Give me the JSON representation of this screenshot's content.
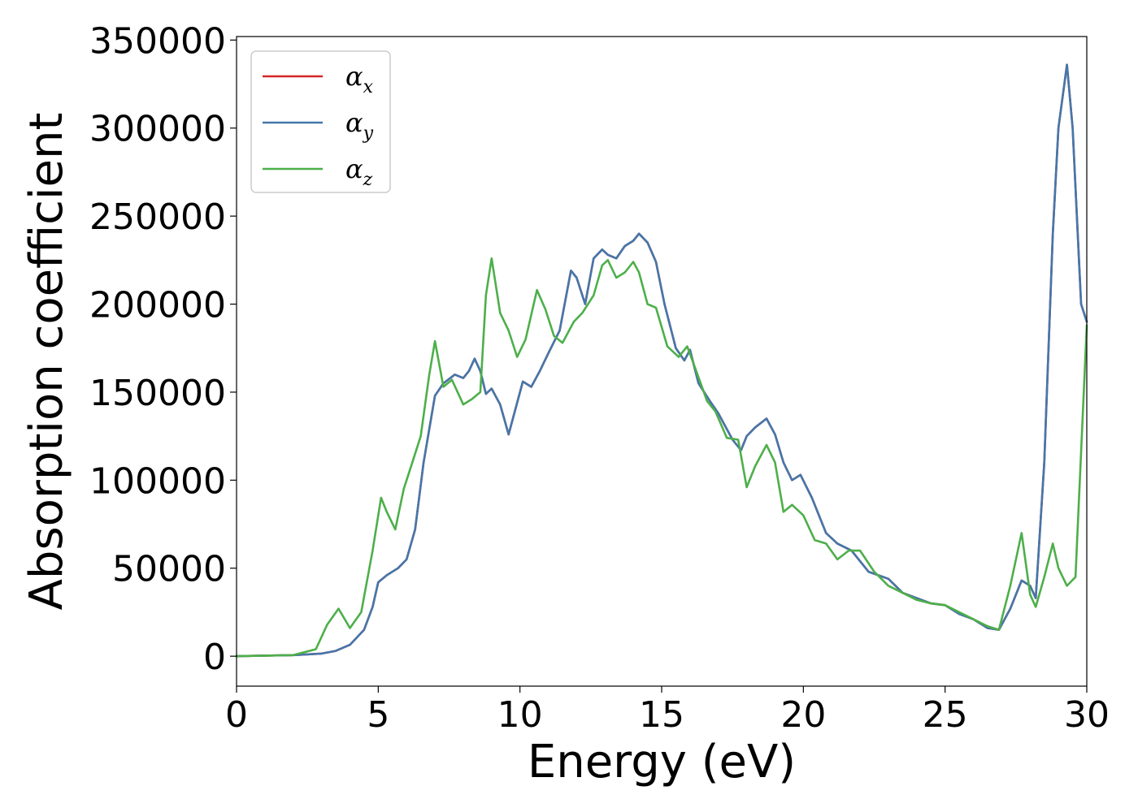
{
  "chart_data": {
    "type": "line",
    "title": "",
    "xlabel": "Energy (eV)",
    "ylabel": "Absorption coefficient",
    "xlim": [
      0,
      30
    ],
    "ylim": [
      -17000,
      352000
    ],
    "xticks": [
      0,
      5,
      10,
      15,
      20,
      25,
      30
    ],
    "xtick_labels": [
      "0",
      "5",
      "10",
      "15",
      "20",
      "25",
      "30"
    ],
    "yticks": [
      0,
      50000,
      100000,
      150000,
      200000,
      250000,
      300000,
      350000
    ],
    "ytick_labels": [
      "0",
      "50000",
      "100000",
      "150000",
      "200000",
      "250000",
      "300000",
      "350000"
    ],
    "grid": false,
    "legend_position": "upper-left",
    "series": [
      {
        "name": "αx",
        "symbol": "α",
        "subscript": "x",
        "color": "#d62728",
        "x": [
          0,
          2,
          3,
          3.5,
          4,
          4.5,
          4.8,
          5,
          5.3,
          5.7,
          6,
          6.3,
          6.6,
          7,
          7.3,
          7.7,
          8,
          8.2,
          8.4,
          8.6,
          8.8,
          9,
          9.3,
          9.6,
          9.8,
          10.1,
          10.4,
          10.7,
          11,
          11.4,
          11.8,
          12,
          12.3,
          12.6,
          12.9,
          13.1,
          13.4,
          13.7,
          14,
          14.2,
          14.5,
          14.8,
          15.1,
          15.5,
          15.8,
          16,
          16.3,
          16.7,
          17,
          17.5,
          17.8,
          18,
          18.3,
          18.7,
          19,
          19.3,
          19.6,
          19.9,
          20.3,
          20.8,
          21.2,
          21.7,
          22.3,
          23,
          23.5,
          24,
          24.5,
          25,
          25.5,
          26,
          26.5,
          26.9,
          27.3,
          27.7,
          28,
          28.2,
          28.5,
          28.8,
          29,
          29.3,
          29.5,
          29.8,
          30
        ],
        "values": [
          0,
          600,
          1500,
          3000,
          6500,
          15000,
          28000,
          42000,
          46000,
          50000,
          55000,
          72000,
          110000,
          148000,
          155000,
          160000,
          158000,
          162000,
          169000,
          162000,
          149000,
          152000,
          143000,
          126000,
          138000,
          156000,
          153000,
          162000,
          172000,
          185000,
          219000,
          215000,
          200000,
          226000,
          231000,
          228000,
          226000,
          233000,
          236000,
          240000,
          235000,
          224000,
          200000,
          175000,
          168000,
          174000,
          155000,
          145000,
          138000,
          123000,
          117000,
          125000,
          130000,
          135000,
          126000,
          110000,
          100000,
          103000,
          90000,
          70000,
          64000,
          60000,
          48000,
          44000,
          36000,
          33000,
          30000,
          29000,
          24000,
          21000,
          16000,
          15000,
          27000,
          43000,
          40000,
          33000,
          110000,
          240000,
          300000,
          336000,
          300000,
          200000,
          190000
        ],
        "dash": false
      },
      {
        "name": "αy",
        "symbol": "α",
        "subscript": "y",
        "color": "#4477aa",
        "x": [
          0,
          2,
          3,
          3.5,
          4,
          4.5,
          4.8,
          5,
          5.3,
          5.7,
          6,
          6.3,
          6.6,
          7,
          7.3,
          7.7,
          8,
          8.2,
          8.4,
          8.6,
          8.8,
          9,
          9.3,
          9.6,
          9.8,
          10.1,
          10.4,
          10.7,
          11,
          11.4,
          11.8,
          12,
          12.3,
          12.6,
          12.9,
          13.1,
          13.4,
          13.7,
          14,
          14.2,
          14.5,
          14.8,
          15.1,
          15.5,
          15.8,
          16,
          16.3,
          16.7,
          17,
          17.5,
          17.8,
          18,
          18.3,
          18.7,
          19,
          19.3,
          19.6,
          19.9,
          20.3,
          20.8,
          21.2,
          21.7,
          22.3,
          23,
          23.5,
          24,
          24.5,
          25,
          25.5,
          26,
          26.5,
          26.9,
          27.3,
          27.7,
          28,
          28.2,
          28.5,
          28.8,
          29,
          29.3,
          29.5,
          29.8,
          30
        ],
        "values": [
          0,
          600,
          1500,
          3000,
          6500,
          15000,
          28000,
          42000,
          46000,
          50000,
          55000,
          72000,
          110000,
          148000,
          155000,
          160000,
          158000,
          162000,
          169000,
          162000,
          149000,
          152000,
          143000,
          126000,
          138000,
          156000,
          153000,
          162000,
          172000,
          185000,
          219000,
          215000,
          200000,
          226000,
          231000,
          228000,
          226000,
          233000,
          236000,
          240000,
          235000,
          224000,
          200000,
          175000,
          168000,
          174000,
          155000,
          145000,
          138000,
          123000,
          117000,
          125000,
          130000,
          135000,
          126000,
          110000,
          100000,
          103000,
          90000,
          70000,
          64000,
          60000,
          48000,
          44000,
          36000,
          33000,
          30000,
          29000,
          24000,
          21000,
          16000,
          15000,
          27000,
          43000,
          40000,
          33000,
          110000,
          240000,
          300000,
          336000,
          300000,
          200000,
          190000
        ]
      },
      {
        "name": "αz",
        "symbol": "α",
        "subscript": "z",
        "color": "#4daf4a",
        "x": [
          0,
          2,
          2.8,
          3.2,
          3.6,
          4,
          4.4,
          4.8,
          5.1,
          5.3,
          5.6,
          5.9,
          6.2,
          6.5,
          6.8,
          7,
          7.3,
          7.6,
          8,
          8.3,
          8.6,
          8.8,
          9,
          9.3,
          9.6,
          9.9,
          10.2,
          10.6,
          10.9,
          11.2,
          11.5,
          11.9,
          12.2,
          12.6,
          12.9,
          13.1,
          13.4,
          13.7,
          14,
          14.2,
          14.5,
          14.8,
          15.2,
          15.6,
          15.9,
          16.2,
          16.6,
          16.9,
          17.3,
          17.7,
          18,
          18.3,
          18.7,
          19,
          19.3,
          19.6,
          20,
          20.4,
          20.8,
          21.2,
          21.6,
          22,
          22.5,
          23,
          23.5,
          24,
          24.5,
          25,
          25.5,
          26,
          26.5,
          26.9,
          27.3,
          27.7,
          28,
          28.2,
          28.5,
          28.8,
          29,
          29.3,
          29.6,
          30
        ],
        "values": [
          0,
          600,
          4000,
          18000,
          27000,
          16000,
          25000,
          60000,
          90000,
          82000,
          72000,
          95000,
          110000,
          125000,
          160000,
          179000,
          153000,
          157000,
          143000,
          146000,
          150000,
          205000,
          226000,
          195000,
          185000,
          170000,
          180000,
          208000,
          197000,
          182000,
          178000,
          190000,
          195000,
          205000,
          222000,
          225000,
          215000,
          218000,
          224000,
          218000,
          200000,
          198000,
          176000,
          170000,
          176000,
          163000,
          145000,
          139000,
          124000,
          123000,
          96000,
          108000,
          120000,
          110000,
          82000,
          86000,
          80000,
          66000,
          64000,
          55000,
          60000,
          60000,
          48000,
          40000,
          36000,
          32000,
          30000,
          29000,
          25000,
          21000,
          17000,
          15000,
          40000,
          70000,
          35000,
          28000,
          45000,
          64000,
          50000,
          40000,
          45000,
          188000
        ]
      }
    ]
  }
}
